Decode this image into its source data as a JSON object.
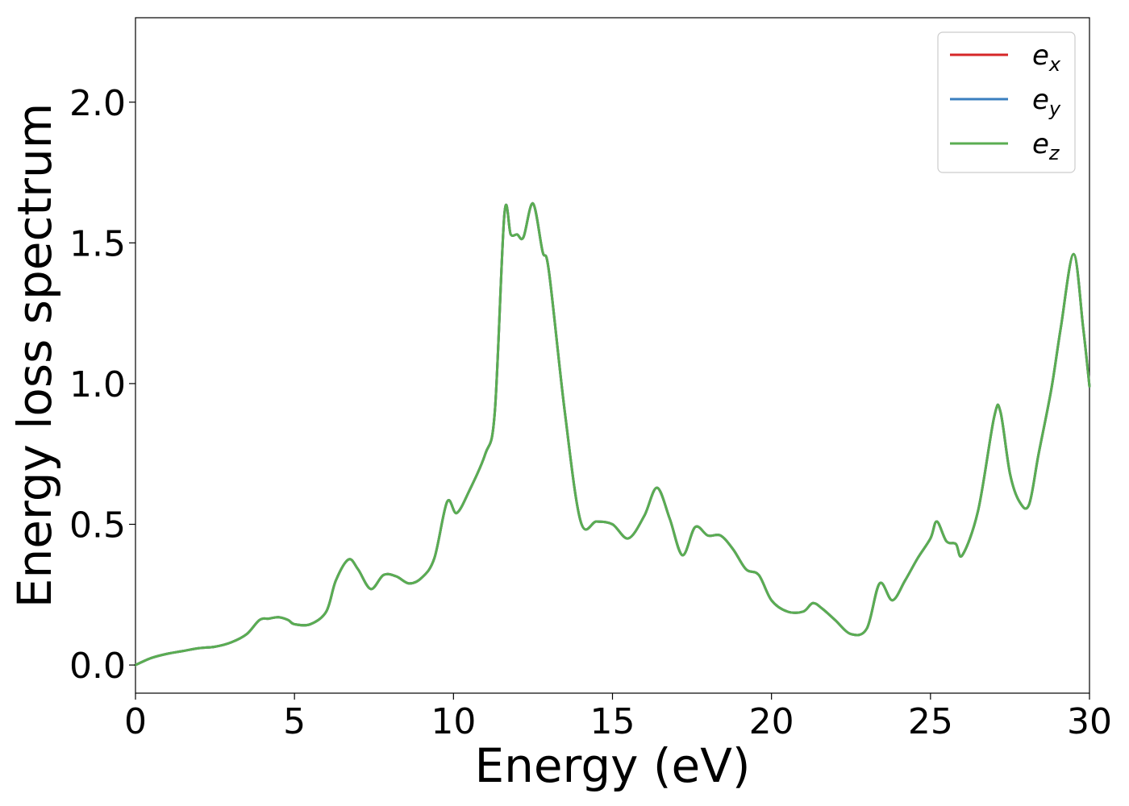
{
  "chart_data": {
    "type": "line",
    "title": "",
    "xlabel": "Energy (eV)",
    "ylabel": "Energy loss spectrum",
    "xlim": [
      0,
      30
    ],
    "ylim": [
      -0.1,
      2.3
    ],
    "xticks": [
      0,
      5,
      10,
      15,
      20,
      25,
      30
    ],
    "xtick_labels": [
      "0",
      "5",
      "10",
      "15",
      "20",
      "25",
      "30"
    ],
    "yticks": [
      0.0,
      0.5,
      1.0,
      1.5,
      2.0
    ],
    "ytick_labels": [
      "0.0",
      "0.5",
      "1.0",
      "1.5",
      "2.0"
    ],
    "grid": false,
    "legend_position": "top-right",
    "x": [
      0,
      0.5,
      1,
      1.5,
      2,
      2.5,
      3,
      3.5,
      3.9,
      4.2,
      4.5,
      4.8,
      5,
      5.5,
      6,
      6.3,
      6.7,
      7,
      7.4,
      7.8,
      8.2,
      8.6,
      9,
      9.4,
      9.8,
      10.1,
      10.5,
      11,
      11.3,
      11.6,
      11.8,
      12,
      12.2,
      12.5,
      12.8,
      13,
      13.5,
      14,
      14.5,
      15,
      15.5,
      16,
      16.4,
      16.8,
      17.2,
      17.6,
      18,
      18.4,
      18.8,
      19.2,
      19.6,
      20,
      20.5,
      21,
      21.3,
      21.6,
      22,
      22.5,
      23,
      23.4,
      23.8,
      24.2,
      24.6,
      25,
      25.2,
      25.5,
      25.8,
      26,
      26.5,
      27,
      27.2,
      27.5,
      27.8,
      28.1,
      28.4,
      28.8,
      29.1,
      29.5,
      29.8,
      30
    ],
    "y": [
      0.0,
      0.025,
      0.04,
      0.05,
      0.06,
      0.065,
      0.08,
      0.11,
      0.16,
      0.165,
      0.17,
      0.16,
      0.145,
      0.145,
      0.19,
      0.3,
      0.375,
      0.34,
      0.27,
      0.32,
      0.315,
      0.29,
      0.31,
      0.38,
      0.58,
      0.54,
      0.62,
      0.75,
      0.9,
      1.6,
      1.53,
      1.53,
      1.52,
      1.64,
      1.47,
      1.4,
      0.9,
      0.51,
      0.51,
      0.5,
      0.45,
      0.53,
      0.63,
      0.52,
      0.39,
      0.49,
      0.46,
      0.46,
      0.41,
      0.34,
      0.32,
      0.23,
      0.19,
      0.19,
      0.22,
      0.2,
      0.16,
      0.11,
      0.13,
      0.29,
      0.23,
      0.3,
      0.38,
      0.45,
      0.51,
      0.44,
      0.43,
      0.39,
      0.55,
      0.88,
      0.9,
      0.68,
      0.58,
      0.57,
      0.75,
      0.98,
      1.2,
      1.46,
      1.2,
      0.99
    ],
    "series": [
      {
        "name": "e_x",
        "label_base": "e",
        "label_sub": "x",
        "color": "#d62728"
      },
      {
        "name": "e_y",
        "label_base": "e",
        "label_sub": "y",
        "color": "#3a7fbf"
      },
      {
        "name": "e_z",
        "label_base": "e",
        "label_sub": "z",
        "color": "#5aad52"
      }
    ]
  }
}
